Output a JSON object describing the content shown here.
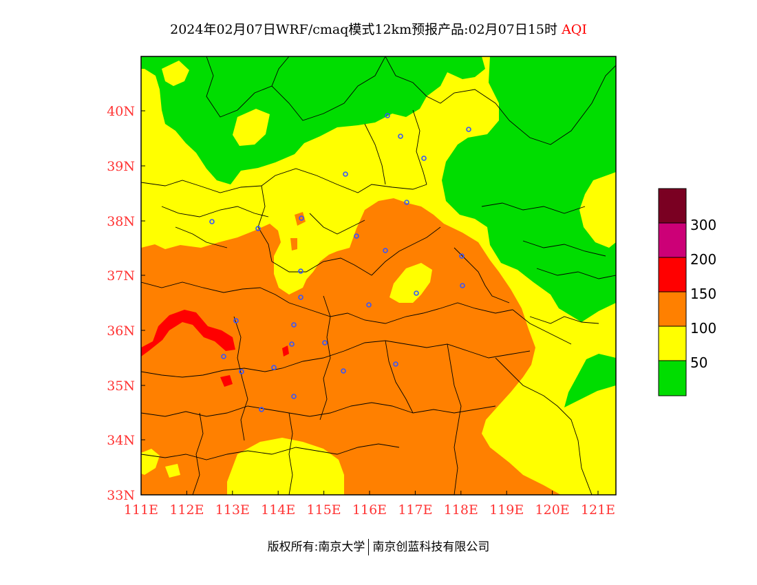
{
  "header": {
    "title": "2024年02月07日WRF/cmaq模式12km预报产品:02月07日15时",
    "product": "AQI"
  },
  "map": {
    "lon_ticks": [
      "111E",
      "112E",
      "113E",
      "114E",
      "115E",
      "116E",
      "117E",
      "118E",
      "119E",
      "120E",
      "121E"
    ],
    "lat_ticks": [
      "33N",
      "34N",
      "35N",
      "36N",
      "37N",
      "38N",
      "39N",
      "40N"
    ],
    "aqi_colors": {
      "green": "#00dd00",
      "yellow": "#ffff00",
      "orange": "#ff8000",
      "red": "#ff0000",
      "purple": "#cc0077",
      "maroon": "#7a0022"
    },
    "station_marker_color": "#3355ff"
  },
  "legend": {
    "levels": [
      "50",
      "100",
      "150",
      "200",
      "300"
    ],
    "colors": [
      "#00dd00",
      "#ffff00",
      "#ff8000",
      "#ff0000",
      "#cc0077",
      "#7a0022"
    ]
  },
  "footer": {
    "copyright": "版权所有:南京大学",
    "company": "南京创蓝科技有限公司"
  }
}
